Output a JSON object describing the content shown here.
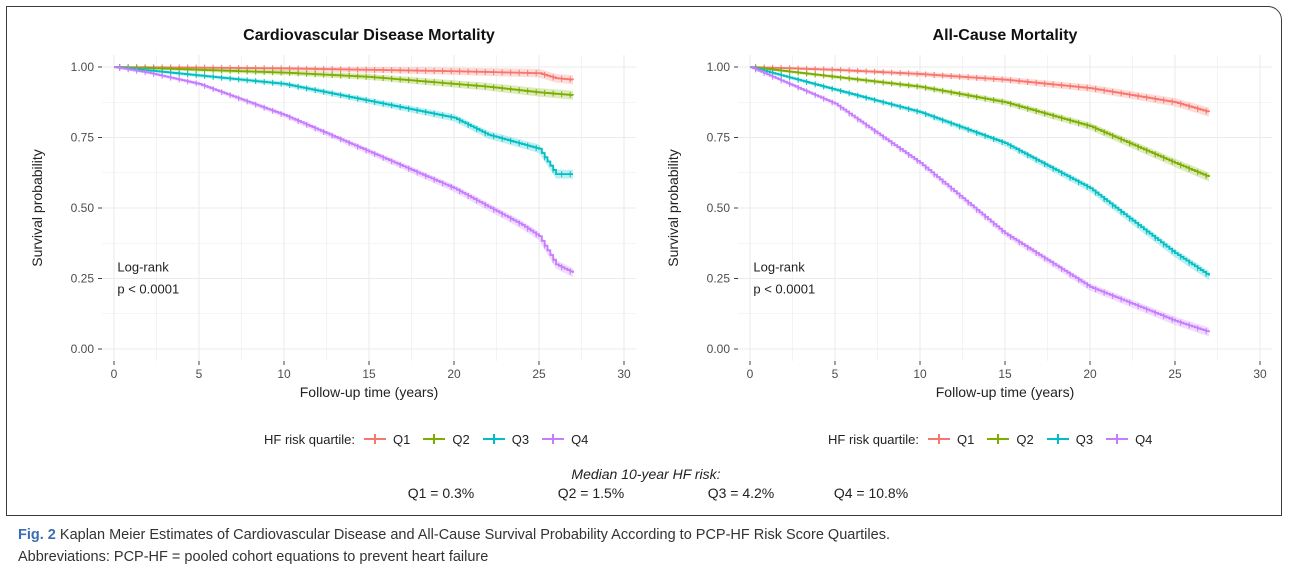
{
  "colors": {
    "Q1": "#F8766D",
    "Q2": "#7CAE00",
    "Q3": "#00BFC4",
    "Q4": "#C77CFF",
    "grid": "#ebebeb",
    "frame": "#3a3a3a",
    "caption_label": "#3a6db5"
  },
  "legend": {
    "title": "HF risk quartile:",
    "items": [
      "Q1",
      "Q2",
      "Q3",
      "Q4"
    ]
  },
  "median": {
    "title": "Median 10-year HF risk:",
    "values": [
      "Q1 = 0.3%",
      "Q2 = 1.5%",
      "Q3 = 4.2%",
      "Q4 = 10.8%"
    ]
  },
  "caption": {
    "label": "Fig. 2",
    "line1": "Kaplan Meier Estimates of Cardiovascular Disease and All-Cause Survival Probability According to PCP-HF Risk Score Quartiles.",
    "line2": "Abbreviations: PCP-HF = pooled cohort equations to prevent heart failure"
  },
  "chart_data": [
    {
      "type": "line",
      "title": "Cardiovascular Disease Mortality",
      "xlabel": "Follow-up time (years)",
      "ylabel": "Survival probability",
      "xlim": [
        0,
        30
      ],
      "ylim": [
        0,
        1
      ],
      "x_ticks": [
        0,
        5,
        10,
        15,
        20,
        25,
        30
      ],
      "y_ticks": [
        0,
        0.25,
        0.5,
        0.75,
        1.0
      ],
      "y_tick_labels": [
        "0.00",
        "0.25",
        "0.50",
        "0.75",
        "1.00"
      ],
      "grid": true,
      "annotation": [
        "Log-rank",
        "p < 0.0001"
      ],
      "series": [
        {
          "name": "Q1",
          "x": [
            0,
            5,
            10,
            15,
            20,
            25,
            26,
            27
          ],
          "y": [
            1.0,
            0.998,
            0.995,
            0.99,
            0.985,
            0.978,
            0.96,
            0.955
          ]
        },
        {
          "name": "Q2",
          "x": [
            0,
            5,
            10,
            15,
            20,
            22,
            25,
            27
          ],
          "y": [
            1.0,
            0.99,
            0.98,
            0.965,
            0.94,
            0.93,
            0.91,
            0.9
          ]
        },
        {
          "name": "Q3",
          "x": [
            0,
            5,
            10,
            15,
            20,
            22,
            25,
            26,
            27
          ],
          "y": [
            1.0,
            0.97,
            0.94,
            0.88,
            0.82,
            0.76,
            0.71,
            0.62,
            0.62
          ]
        },
        {
          "name": "Q4",
          "x": [
            0,
            2,
            5,
            10,
            15,
            20,
            24,
            25,
            26,
            27
          ],
          "y": [
            1.0,
            0.98,
            0.94,
            0.83,
            0.7,
            0.57,
            0.44,
            0.4,
            0.3,
            0.27
          ]
        }
      ]
    },
    {
      "type": "line",
      "title": "All-Cause Mortality",
      "xlabel": "Follow-up time (years)",
      "ylabel": "Survival probability",
      "xlim": [
        0,
        30
      ],
      "ylim": [
        0,
        1
      ],
      "x_ticks": [
        0,
        5,
        10,
        15,
        20,
        25,
        30
      ],
      "y_ticks": [
        0,
        0.25,
        0.5,
        0.75,
        1.0
      ],
      "y_tick_labels": [
        "0.00",
        "0.25",
        "0.50",
        "0.75",
        "1.00"
      ],
      "grid": true,
      "annotation": [
        "Log-rank",
        "p < 0.0001"
      ],
      "series": [
        {
          "name": "Q1",
          "x": [
            0,
            5,
            10,
            15,
            20,
            25,
            27
          ],
          "y": [
            1.0,
            0.99,
            0.975,
            0.955,
            0.925,
            0.875,
            0.84
          ]
        },
        {
          "name": "Q2",
          "x": [
            0,
            5,
            10,
            15,
            20,
            25,
            27
          ],
          "y": [
            1.0,
            0.965,
            0.93,
            0.875,
            0.79,
            0.66,
            0.61
          ]
        },
        {
          "name": "Q3",
          "x": [
            0,
            5,
            10,
            15,
            20,
            25,
            27
          ],
          "y": [
            1.0,
            0.92,
            0.84,
            0.73,
            0.57,
            0.34,
            0.26
          ]
        },
        {
          "name": "Q4",
          "x": [
            0,
            5,
            10,
            15,
            20,
            25,
            27
          ],
          "y": [
            1.0,
            0.87,
            0.66,
            0.41,
            0.22,
            0.1,
            0.06
          ]
        }
      ]
    }
  ]
}
